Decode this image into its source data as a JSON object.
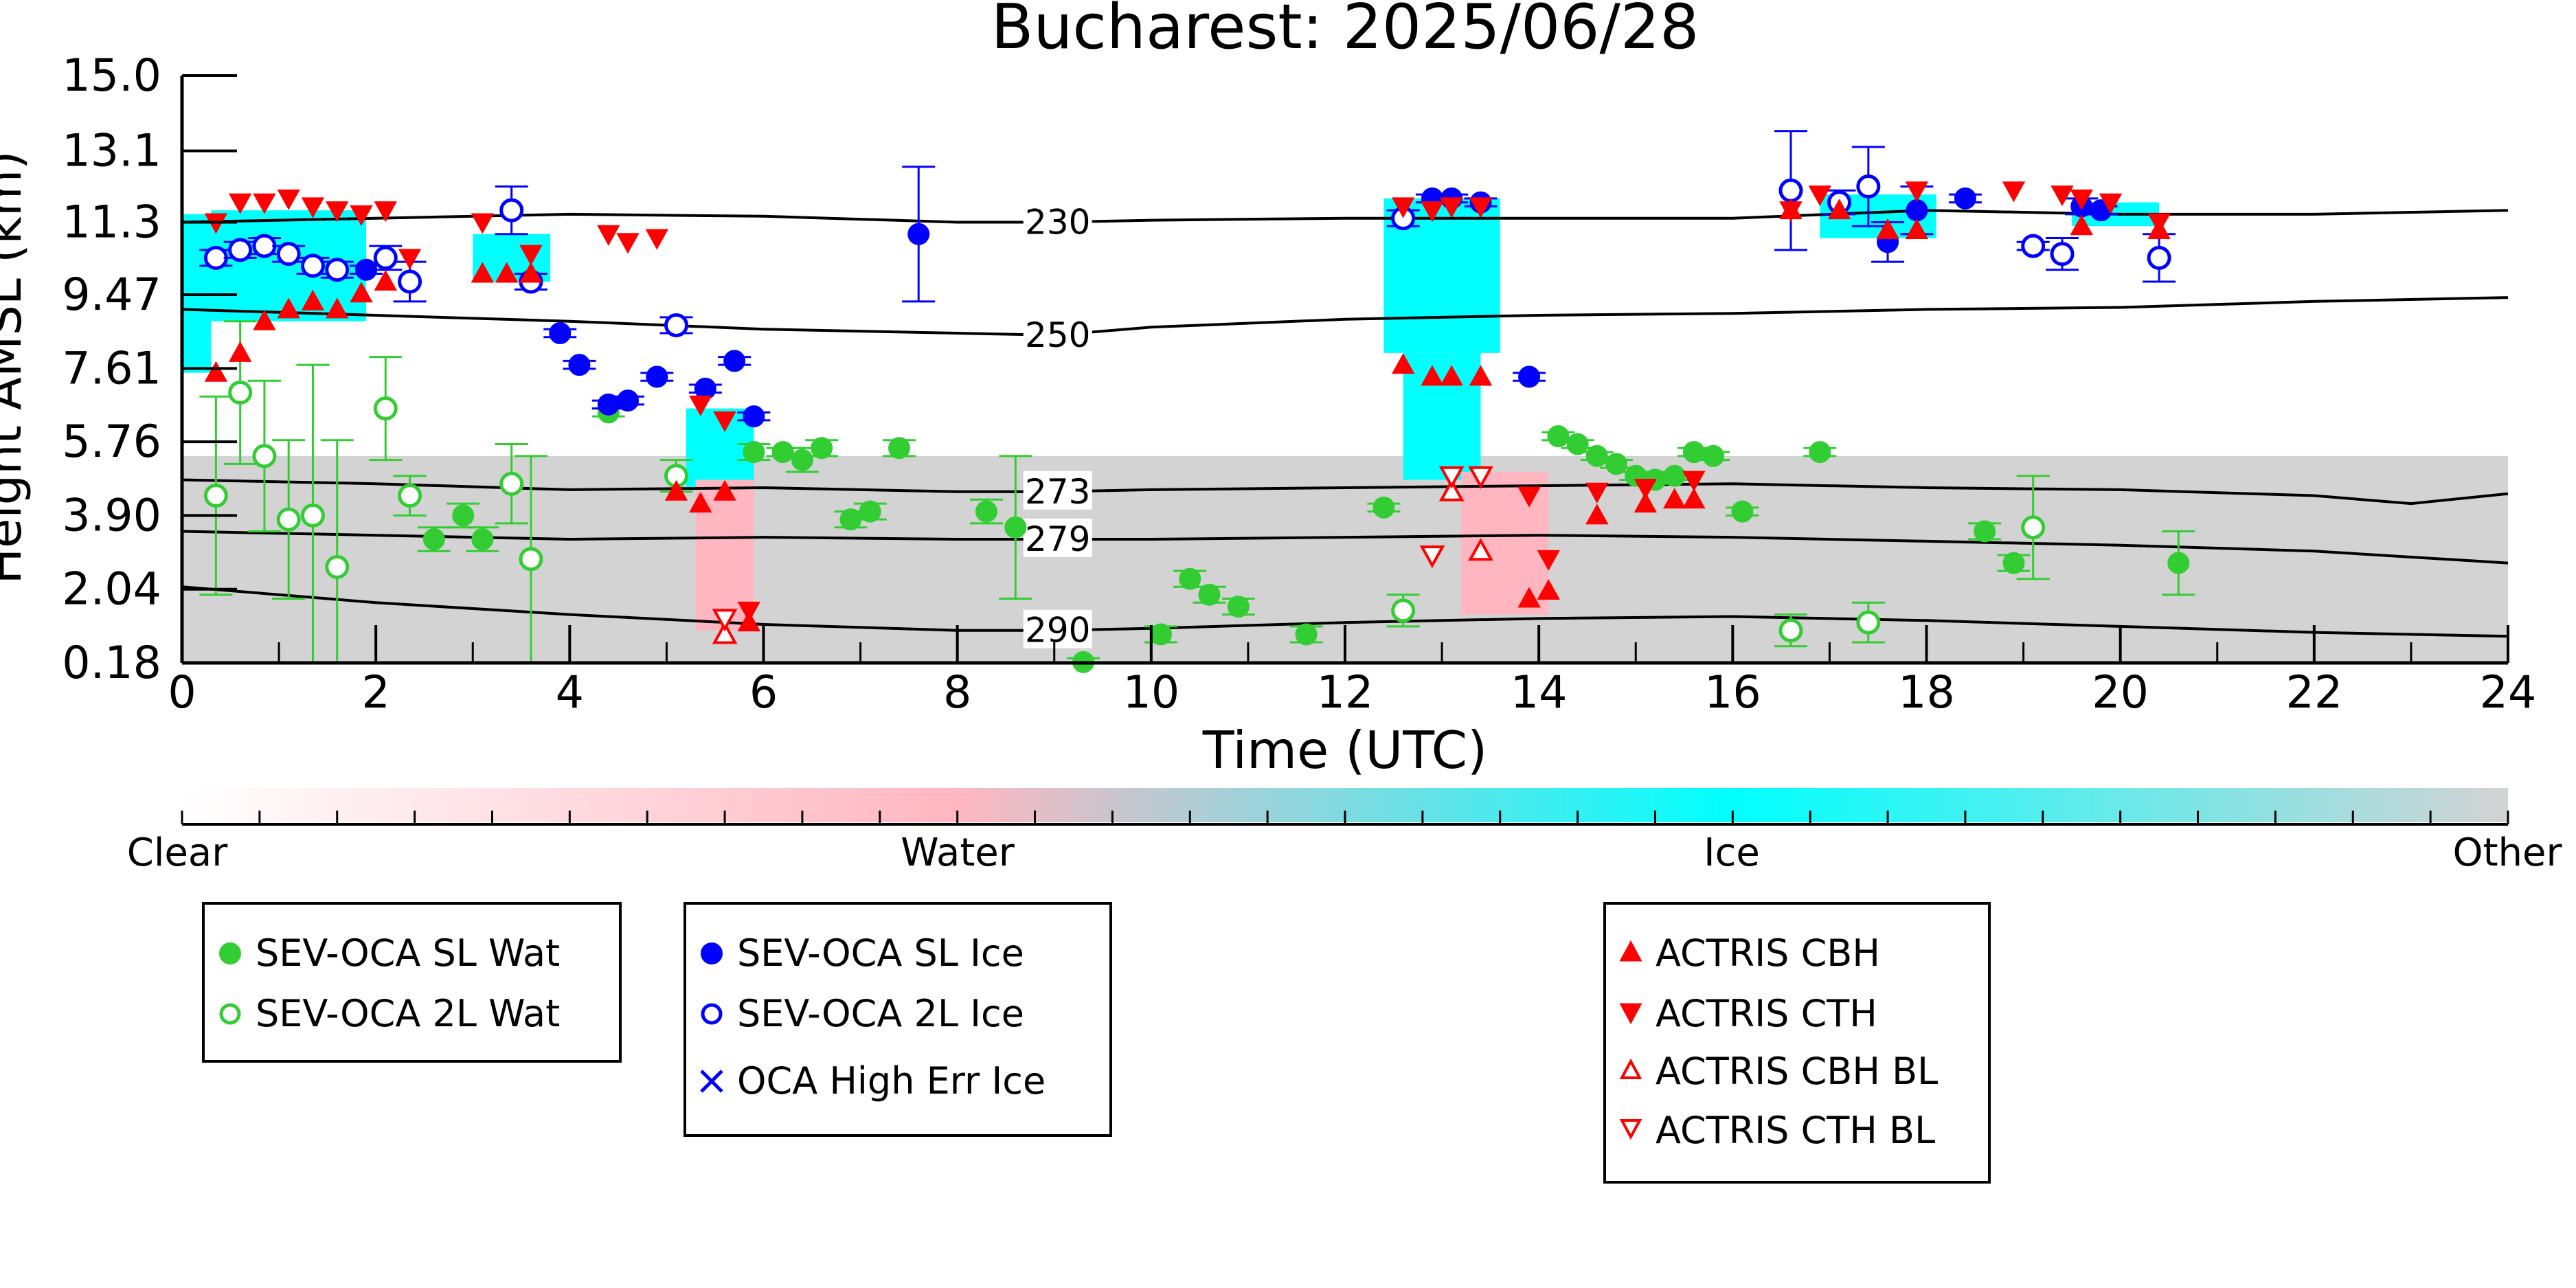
{
  "chart_data": {
    "type": "scatter",
    "title": "Bucharest: 2025/06/28",
    "xlabel": "Time (UTC)",
    "ylabel": "Height AMSL (km)",
    "xlim": [
      0,
      24
    ],
    "ylim": [
      0.18,
      15.0
    ],
    "x_ticks": [
      0,
      2,
      4,
      6,
      8,
      10,
      12,
      14,
      16,
      18,
      20,
      22,
      24
    ],
    "y_ticks": [
      0.18,
      2.04,
      3.9,
      5.76,
      7.61,
      9.47,
      11.3,
      13.1,
      15.0
    ],
    "y_tick_labels": [
      "0.18",
      "2.04",
      "3.90",
      "5.76",
      "7.61",
      "9.47",
      "11.3",
      "13.1",
      "15.0"
    ],
    "grid": false,
    "colorbar": {
      "labels": [
        "Clear",
        "Water",
        "Ice",
        "Other"
      ],
      "colors": [
        "#ffffff",
        "#ffb6c1",
        "#00ffff",
        "#d3d3d3"
      ]
    },
    "colors": {
      "water": "#32cd32",
      "ice": "#0000ff",
      "actris": "#ff0000",
      "cloud_water": "#ffb6c1",
      "cloud_ice": "#00ffff",
      "cloud_other": "#d3d3d3"
    },
    "isotherms": [
      {
        "label": "230",
        "x": [
          0,
          2,
          4,
          6,
          8,
          9,
          10,
          12,
          14,
          16,
          18,
          20,
          22,
          24
        ],
        "y": [
          11.3,
          11.4,
          11.5,
          11.45,
          11.3,
          11.3,
          11.35,
          11.4,
          11.4,
          11.4,
          11.6,
          11.5,
          11.5,
          11.6
        ]
      },
      {
        "label": "250",
        "x": [
          0,
          2,
          4,
          6,
          8,
          9,
          10,
          12,
          14,
          16,
          18,
          20,
          22,
          24
        ],
        "y": [
          9.1,
          8.95,
          8.8,
          8.6,
          8.5,
          8.45,
          8.65,
          8.85,
          8.95,
          9.0,
          9.1,
          9.15,
          9.3,
          9.4
        ]
      },
      {
        "label": "273",
        "x": [
          0,
          2,
          4,
          6,
          8,
          9,
          10,
          12,
          14,
          16,
          18,
          20,
          22,
          23,
          24
        ],
        "y": [
          4.8,
          4.7,
          4.55,
          4.6,
          4.5,
          4.5,
          4.55,
          4.6,
          4.65,
          4.7,
          4.6,
          4.55,
          4.4,
          4.2,
          4.45
        ]
      },
      {
        "label": "279",
        "x": [
          0,
          2,
          4,
          6,
          8,
          9,
          10,
          12,
          14,
          16,
          18,
          20,
          22,
          24
        ],
        "y": [
          3.5,
          3.4,
          3.3,
          3.35,
          3.3,
          3.3,
          3.3,
          3.35,
          3.4,
          3.35,
          3.25,
          3.15,
          3.0,
          2.7
        ]
      },
      {
        "label": "290",
        "x": [
          0,
          2,
          4,
          6,
          8,
          9,
          10,
          12,
          14,
          16,
          18,
          20,
          22,
          24
        ],
        "y": [
          2.1,
          1.7,
          1.4,
          1.15,
          1.0,
          1.0,
          1.05,
          1.2,
          1.3,
          1.35,
          1.25,
          1.1,
          0.95,
          0.85
        ]
      }
    ],
    "cloud_regions": [
      {
        "class": "other",
        "x0": 0.0,
        "x1": 24.0,
        "y0": 0.18,
        "y1": 5.4
      },
      {
        "class": "ice",
        "x0": 0.0,
        "x1": 0.3,
        "y0": 7.5,
        "y1": 11.5
      },
      {
        "class": "ice",
        "x0": 0.3,
        "x1": 1.9,
        "y0": 8.8,
        "y1": 11.6
      },
      {
        "class": "ice",
        "x0": 3.0,
        "x1": 3.8,
        "y0": 9.8,
        "y1": 11.0
      },
      {
        "class": "ice",
        "x0": 5.2,
        "x1": 5.9,
        "y0": 4.6,
        "y1": 6.6
      },
      {
        "class": "ice",
        "x0": 12.4,
        "x1": 13.6,
        "y0": 8.0,
        "y1": 11.9
      },
      {
        "class": "ice",
        "x0": 12.6,
        "x1": 13.4,
        "y0": 4.8,
        "y1": 8.0
      },
      {
        "class": "ice",
        "x0": 16.9,
        "x1": 18.1,
        "y0": 10.9,
        "y1": 12.0
      },
      {
        "class": "ice",
        "x0": 19.5,
        "x1": 20.4,
        "y0": 11.2,
        "y1": 11.8
      },
      {
        "class": "water",
        "x0": 5.3,
        "x1": 5.9,
        "y0": 1.0,
        "y1": 4.8
      },
      {
        "class": "water",
        "x0": 13.2,
        "x1": 14.1,
        "y0": 1.4,
        "y1": 5.0
      }
    ],
    "series": [
      {
        "name": "SEV-OCA SL Wat",
        "marker": "circle",
        "filled": true,
        "color": "#32cd32",
        "x": [
          2.6,
          2.9,
          3.1,
          4.4,
          5.9,
          6.2,
          6.4,
          6.6,
          6.9,
          7.1,
          7.4,
          8.3,
          8.6,
          9.3,
          10.1,
          10.4,
          10.6,
          10.9,
          11.6,
          12.4,
          14.2,
          14.4,
          14.6,
          14.8,
          15.0,
          15.2,
          15.4,
          15.6,
          15.8,
          16.1,
          16.9,
          18.6,
          18.9,
          20.6
        ],
        "y": [
          3.3,
          3.9,
          3.3,
          6.5,
          5.5,
          5.5,
          5.3,
          5.6,
          3.8,
          4.0,
          5.6,
          4.0,
          3.6,
          0.2,
          0.9,
          2.3,
          1.9,
          1.6,
          0.9,
          4.1,
          5.9,
          5.7,
          5.4,
          5.2,
          4.9,
          4.8,
          4.9,
          5.5,
          5.4,
          4.0,
          5.5,
          3.5,
          2.7,
          2.7
        ],
        "yerr": [
          0.3,
          0.3,
          0.3,
          0.1,
          0.2,
          0.1,
          0.3,
          0.2,
          0.2,
          0.2,
          0.2,
          0.3,
          1.8,
          0.1,
          0.2,
          0.2,
          0.2,
          0.2,
          0.2,
          0.1,
          0.1,
          0.1,
          0.1,
          0.1,
          0.1,
          0.1,
          0.1,
          0.1,
          0.1,
          0.1,
          0.1,
          0.2,
          0.2,
          0.8
        ]
      },
      {
        "name": "SEV-OCA 2L Wat",
        "marker": "circle",
        "filled": false,
        "color": "#32cd32",
        "x": [
          0.35,
          0.6,
          0.85,
          1.1,
          1.35,
          1.6,
          2.1,
          2.35,
          3.4,
          3.6,
          5.1,
          12.6,
          16.6,
          17.4,
          19.1
        ],
        "y": [
          4.4,
          7.0,
          5.4,
          3.8,
          3.9,
          2.6,
          6.6,
          4.4,
          4.7,
          2.8,
          4.9,
          1.5,
          1.0,
          1.2,
          3.6
        ],
        "yerr": [
          2.5,
          1.8,
          1.9,
          2.0,
          3.8,
          3.2,
          1.3,
          0.5,
          1.0,
          2.6,
          0.4,
          0.4,
          0.4,
          0.5,
          1.3
        ]
      },
      {
        "name": "SEV-OCA SL Ice",
        "marker": "circle",
        "filled": true,
        "color": "#0000ff",
        "x": [
          1.9,
          3.9,
          4.1,
          4.4,
          4.6,
          4.9,
          5.4,
          5.7,
          5.9,
          7.6,
          12.9,
          13.1,
          13.4,
          13.9,
          17.6,
          17.9,
          18.4,
          19.6,
          19.8
        ],
        "y": [
          10.1,
          8.5,
          7.7,
          6.7,
          6.8,
          7.4,
          7.1,
          7.8,
          6.4,
          11.0,
          11.9,
          11.9,
          11.8,
          7.4,
          10.8,
          11.6,
          11.9,
          11.7,
          11.6
        ],
        "yerr": [
          0.1,
          0.1,
          0.1,
          0.1,
          0.1,
          0.1,
          0.1,
          0.1,
          0.1,
          1.7,
          0.1,
          0.1,
          0.1,
          0.1,
          0.5,
          0.6,
          0.1,
          0.2,
          0.1
        ]
      },
      {
        "name": "SEV-OCA 2L Ice",
        "marker": "circle",
        "filled": false,
        "color": "#0000ff",
        "x": [
          0.35,
          0.6,
          0.85,
          1.1,
          1.35,
          1.6,
          2.1,
          2.35,
          3.4,
          3.6,
          5.1,
          12.6,
          16.6,
          17.1,
          17.4,
          19.1,
          19.4,
          20.4
        ],
        "y": [
          10.4,
          10.6,
          10.7,
          10.5,
          10.2,
          10.1,
          10.4,
          9.8,
          11.6,
          9.8,
          8.7,
          11.4,
          12.1,
          11.8,
          12.2,
          10.7,
          10.5,
          10.4
        ],
        "yerr": [
          0.2,
          0.2,
          0.2,
          0.2,
          0.2,
          0.2,
          0.3,
          0.5,
          0.6,
          0.2,
          0.2,
          0.2,
          1.5,
          0.3,
          1.0,
          0.1,
          0.4,
          0.6
        ]
      },
      {
        "name": "OCA High Err Ice",
        "marker": "x",
        "filled": false,
        "color": "#0000ff",
        "x": [],
        "y": []
      },
      {
        "name": "ACTRIS CBH",
        "marker": "triangle-up",
        "filled": true,
        "color": "#ff0000",
        "x": [
          0.35,
          0.6,
          0.85,
          1.1,
          1.35,
          1.6,
          1.85,
          2.1,
          3.1,
          3.35,
          3.6,
          5.1,
          5.35,
          5.6,
          5.85,
          12.6,
          12.9,
          13.1,
          13.4,
          13.9,
          14.1,
          14.6,
          15.1,
          15.4,
          15.6,
          16.6,
          17.1,
          17.6,
          17.9,
          19.6,
          20.4
        ],
        "y": [
          7.5,
          8.0,
          8.8,
          9.1,
          9.3,
          9.1,
          9.5,
          9.8,
          10.0,
          10.0,
          10.0,
          4.5,
          4.2,
          4.5,
          1.2,
          7.7,
          7.4,
          7.4,
          7.4,
          1.8,
          2.0,
          3.9,
          4.2,
          4.3,
          4.3,
          11.6,
          11.6,
          11.1,
          11.1,
          11.2,
          11.1
        ],
        "yerr": []
      },
      {
        "name": "ACTRIS CTH",
        "marker": "triangle-down",
        "filled": true,
        "color": "#ff0000",
        "x": [
          0.35,
          0.6,
          0.85,
          1.1,
          1.35,
          1.6,
          1.85,
          2.1,
          2.35,
          3.1,
          3.6,
          4.4,
          4.6,
          4.9,
          5.35,
          5.6,
          5.85,
          12.6,
          12.9,
          13.1,
          13.4,
          13.9,
          14.1,
          14.6,
          15.1,
          15.6,
          16.6,
          16.9,
          17.9,
          18.9,
          19.4,
          19.6,
          19.9,
          20.4
        ],
        "y": [
          11.3,
          11.8,
          11.8,
          11.9,
          11.7,
          11.6,
          11.5,
          11.6,
          10.4,
          11.3,
          10.5,
          11.0,
          10.8,
          10.9,
          6.7,
          6.3,
          1.5,
          11.7,
          11.6,
          11.7,
          11.7,
          4.4,
          2.8,
          4.5,
          4.6,
          4.8,
          11.6,
          12.0,
          12.1,
          12.1,
          12.0,
          11.9,
          11.8,
          11.3
        ],
        "yerr": []
      },
      {
        "name": "ACTRIS CBH BL",
        "marker": "triangle-up",
        "filled": false,
        "color": "#ff0000",
        "x": [
          5.6,
          13.1,
          13.4
        ],
        "y": [
          0.9,
          4.5,
          3.0
        ],
        "yerr": []
      },
      {
        "name": "ACTRIS CTH BL",
        "marker": "triangle-down",
        "filled": false,
        "color": "#ff0000",
        "x": [
          5.6,
          13.1,
          13.4,
          12.9
        ],
        "y": [
          1.3,
          4.9,
          4.9,
          2.9
        ],
        "yerr": []
      }
    ],
    "legend_groups": [
      [
        "SEV-OCA SL Wat",
        "SEV-OCA 2L Wat"
      ],
      [
        "SEV-OCA SL Ice",
        "SEV-OCA 2L Ice",
        "OCA High Err Ice"
      ],
      [
        "ACTRIS CBH",
        "ACTRIS CTH",
        "ACTRIS CBH BL",
        "ACTRIS CTH BL"
      ]
    ]
  }
}
